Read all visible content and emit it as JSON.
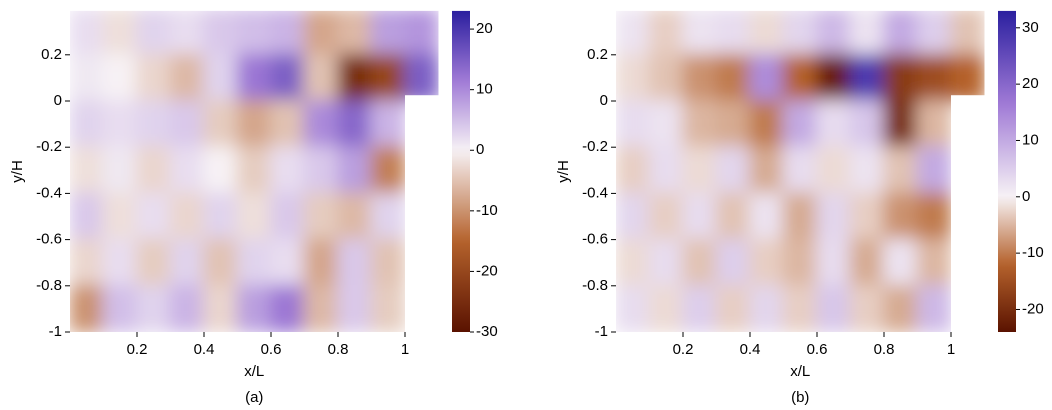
{
  "chart_data": [
    {
      "type": "heatmap",
      "caption": "(a)",
      "x_label": "x/L",
      "y_label": "y/H",
      "xlim": [
        0,
        1.1
      ],
      "ylim": [
        -1,
        0.39
      ],
      "xticks": [
        0.2,
        0.4,
        0.6,
        0.8,
        1
      ],
      "yticks": [
        0.2,
        0,
        -0.2,
        -0.4,
        -0.6,
        -0.8,
        -1
      ],
      "x": [
        0.05,
        0.15,
        0.25,
        0.35,
        0.45,
        0.55,
        0.65,
        0.75,
        0.85,
        0.95,
        1.05
      ],
      "y": [
        0.3,
        0.1,
        -0.1,
        -0.3,
        -0.5,
        -0.7,
        -0.9
      ],
      "z": [
        [
          2,
          -2,
          3,
          2,
          4,
          5,
          6,
          -8,
          -6,
          8,
          9
        ],
        [
          1,
          0,
          -3,
          -6,
          3,
          12,
          15,
          -5,
          -25,
          -20,
          15
        ],
        [
          3,
          2,
          3,
          4,
          -4,
          -8,
          -5,
          10,
          14,
          6,
          null
        ],
        [
          -2,
          1,
          -3,
          2,
          0,
          -4,
          2,
          4,
          8,
          -12,
          null
        ],
        [
          4,
          -2,
          2,
          -3,
          3,
          -2,
          4,
          -4,
          -6,
          3,
          null
        ],
        [
          -3,
          2,
          -4,
          3,
          -5,
          3,
          2,
          -8,
          4,
          -5,
          null
        ],
        [
          -10,
          5,
          3,
          6,
          -3,
          8,
          12,
          -6,
          4,
          -4,
          null
        ]
      ],
      "zlim": [
        -30,
        23
      ],
      "zticks": [
        20,
        10,
        0,
        -10,
        -20,
        -30
      ],
      "colormap": [
        "#5a1200",
        "#b5622c",
        "#f7f2f5",
        "#a07ad6",
        "#2b1f9f"
      ]
    },
    {
      "type": "heatmap",
      "caption": "(b)",
      "x_label": "x/L",
      "y_label": "y/H",
      "xlim": [
        0,
        1.1
      ],
      "ylim": [
        -1,
        0.39
      ],
      "xticks": [
        0.2,
        0.4,
        0.6,
        0.8,
        1
      ],
      "yticks": [
        0.2,
        0,
        -0.2,
        -0.4,
        -0.6,
        -0.8,
        -1
      ],
      "x": [
        0.05,
        0.15,
        0.25,
        0.35,
        0.45,
        0.55,
        0.65,
        0.75,
        0.85,
        0.95,
        1.05
      ],
      "y": [
        0.3,
        0.1,
        -0.1,
        -0.3,
        -0.5,
        -0.7,
        -0.9
      ],
      "z": [
        [
          2,
          -3,
          2,
          3,
          -2,
          4,
          8,
          2,
          10,
          5,
          -4
        ],
        [
          -2,
          -4,
          -8,
          -10,
          14,
          -12,
          -22,
          28,
          -18,
          -15,
          -12
        ],
        [
          3,
          2,
          -5,
          -6,
          -10,
          10,
          3,
          6,
          -20,
          -5,
          null
        ],
        [
          -3,
          3,
          -2,
          4,
          -6,
          3,
          -2,
          2,
          -4,
          10,
          null
        ],
        [
          4,
          -3,
          3,
          -4,
          2,
          -6,
          4,
          -3,
          -8,
          -10,
          null
        ],
        [
          -2,
          3,
          -4,
          5,
          -3,
          -5,
          3,
          -6,
          2,
          -5,
          null
        ],
        [
          3,
          -2,
          5,
          -3,
          4,
          -3,
          6,
          -3,
          -6,
          8,
          null
        ]
      ],
      "zlim": [
        -24,
        33
      ],
      "zticks": [
        30,
        20,
        10,
        0,
        -10,
        -20
      ],
      "colormap": [
        "#5a1200",
        "#b5622c",
        "#f7f2f5",
        "#a07ad6",
        "#2b1f9f"
      ]
    }
  ]
}
